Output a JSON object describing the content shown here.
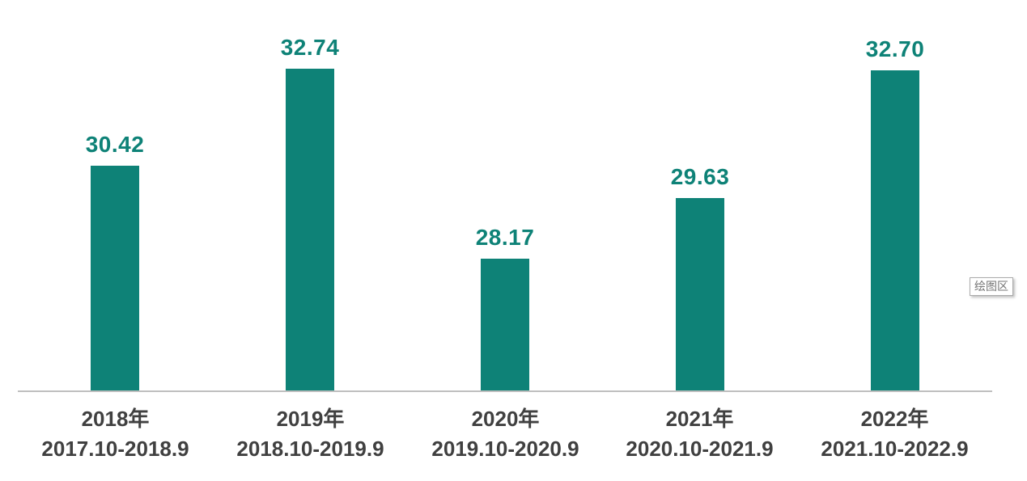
{
  "chart_data": {
    "type": "bar",
    "title": "",
    "xlabel": "",
    "ylabel": "",
    "categories": [
      "2018年",
      "2019年",
      "2020年",
      "2021年",
      "2022年"
    ],
    "category_sublabels": [
      "2017.10-2018.9",
      "2018.10-2019.9",
      "2019.10-2020.9",
      "2020.10-2021.9",
      "2021.10-2022.9"
    ],
    "values": [
      30.42,
      32.74,
      28.17,
      29.63,
      32.7
    ],
    "data_labels": [
      "30.42",
      "32.74",
      "28.17",
      "29.63",
      "32.70"
    ],
    "ylim": [
      25,
      34.4
    ],
    "grid": false,
    "legend": false,
    "series_name": "",
    "colors": {
      "bar": "#0e8277",
      "value_label": "#0e8277",
      "tick_label": "#404040",
      "axis_line": "#bfbfbf"
    }
  },
  "tooltip": {
    "label": "绘图区"
  }
}
